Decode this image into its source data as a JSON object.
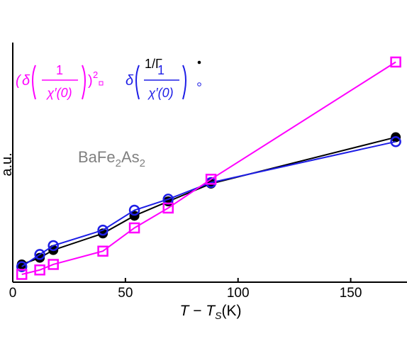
{
  "chart_data": {
    "type": "line",
    "xlabel": "T − T_S(K)",
    "ylabel": "a.u.",
    "xlim": [
      0,
      175
    ],
    "ylim": [
      0,
      1
    ],
    "xticks": [
      "0",
      "50",
      "100",
      "150"
    ],
    "yticks": [],
    "annotation": "BaFe2As2",
    "series": [
      {
        "name": "1/Γ",
        "marker": "filled-circle",
        "color": "#000000",
        "x": [
          4,
          12,
          18,
          40,
          54,
          69,
          88,
          170
        ],
        "y": [
          0.045,
          0.075,
          0.11,
          0.185,
          0.265,
          0.33,
          0.41,
          0.62
        ]
      },
      {
        "name": "δ(1/χ′(0))",
        "marker": "open-circle",
        "color": "#1e1ee6",
        "x": [
          4,
          12,
          18,
          40,
          54,
          69,
          88,
          170
        ],
        "y": [
          0.035,
          0.09,
          0.13,
          0.2,
          0.29,
          0.34,
          0.415,
          0.6
        ]
      },
      {
        "name": "(δ(1/χ′(0)))²",
        "marker": "open-square",
        "color": "#ff00ff",
        "x": [
          4,
          12,
          18,
          40,
          54,
          69,
          88,
          170
        ],
        "y": [
          0.0,
          0.02,
          0.045,
          0.105,
          0.21,
          0.3,
          0.43,
          0.96
        ]
      }
    ]
  },
  "text": {
    "ylabel": "a.u.",
    "xlabel_T": "T",
    "xlabel_minus": " − ",
    "xlabel_TS": "T",
    "xlabel_sub": "S",
    "xlabel_K": "(K)",
    "annotation_main": "BaFe",
    "annotation_sub1": "2",
    "annotation_mid": "As",
    "annotation_sub2": "2",
    "legend_black_label": "1/Γ",
    "legend_delta": "δ",
    "legend_one": "1",
    "legend_chi": "χ′(0)",
    "legend_exp": "2"
  }
}
